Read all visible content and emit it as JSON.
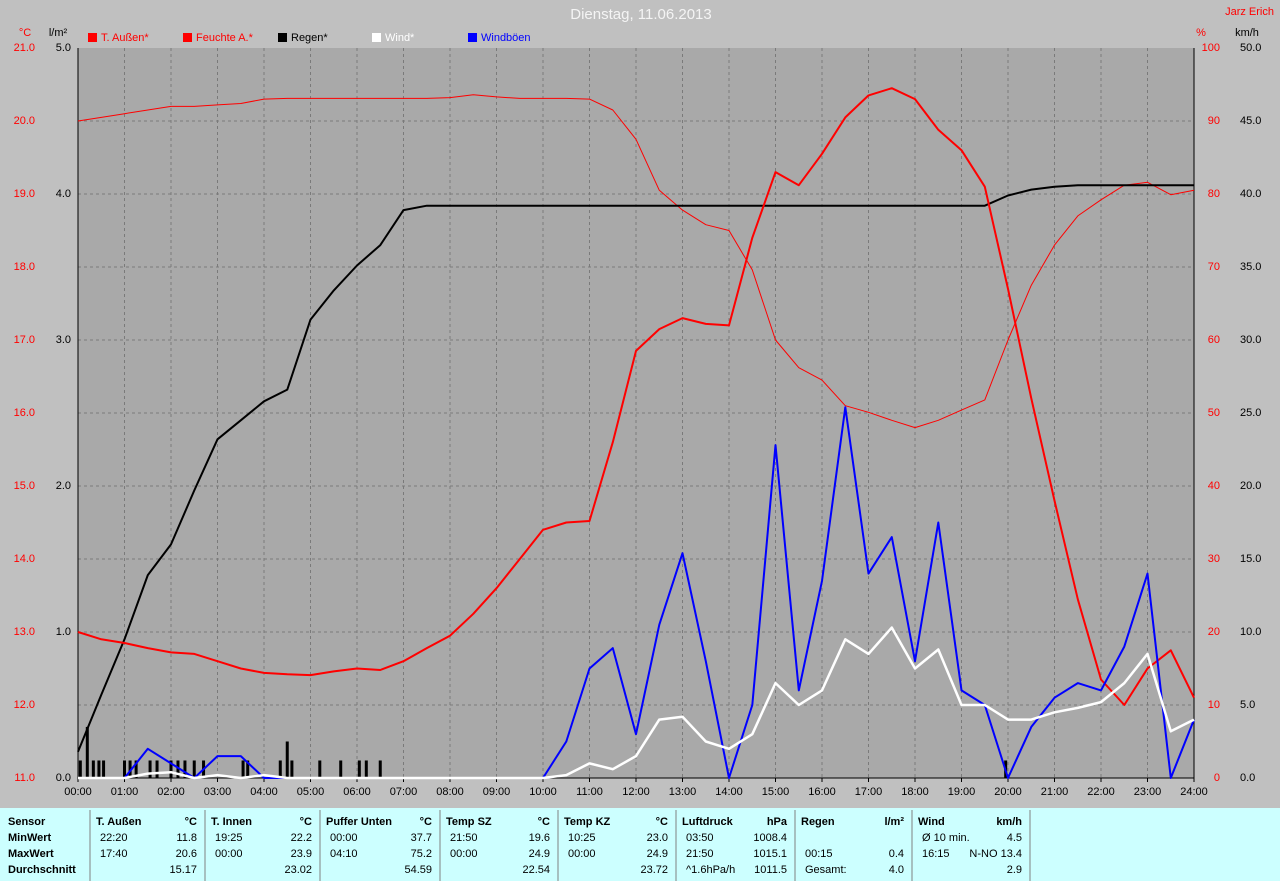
{
  "chart_data": {
    "type": "line",
    "title": "Dienstag, 11.06.2013",
    "author": "Jarz Erich",
    "xlim": [
      0,
      24
    ],
    "xticks": [
      {
        "value": 0,
        "label": "00:00"
      },
      {
        "value": 1,
        "label": "01:00"
      },
      {
        "value": 2,
        "label": "02:00"
      },
      {
        "value": 3,
        "label": "03:00"
      },
      {
        "value": 4,
        "label": "04:00"
      },
      {
        "value": 5,
        "label": "05:00"
      },
      {
        "value": 6,
        "label": "06:00"
      },
      {
        "value": 7,
        "label": "07:00"
      },
      {
        "value": 8,
        "label": "08:00"
      },
      {
        "value": 9,
        "label": "09:00"
      },
      {
        "value": 10,
        "label": "10:00"
      },
      {
        "value": 11,
        "label": "11:00"
      },
      {
        "value": 12,
        "label": "12:00"
      },
      {
        "value": 13,
        "label": "13:00"
      },
      {
        "value": 14,
        "label": "14:00"
      },
      {
        "value": 15,
        "label": "15:00"
      },
      {
        "value": 16,
        "label": "16:00"
      },
      {
        "value": 17,
        "label": "17:00"
      },
      {
        "value": 18,
        "label": "18:00"
      },
      {
        "value": 19,
        "label": "19:00"
      },
      {
        "value": 20,
        "label": "20:00"
      },
      {
        "value": 21,
        "label": "21:00"
      },
      {
        "value": 22,
        "label": "22:00"
      },
      {
        "value": 23,
        "label": "23:00"
      },
      {
        "value": 24,
        "label": "24:00"
      }
    ],
    "grid": true,
    "axes": {
      "temp": {
        "label": "°C",
        "color": "#ff0000",
        "lim": [
          11,
          21
        ],
        "ticks": [
          {
            "value": 11,
            "label": "11.0"
          },
          {
            "value": 12,
            "label": "12.0"
          },
          {
            "value": 13,
            "label": "13.0"
          },
          {
            "value": 14,
            "label": "14.0"
          },
          {
            "value": 15,
            "label": "15.0"
          },
          {
            "value": 16,
            "label": "16.0"
          },
          {
            "value": 17,
            "label": "17.0"
          },
          {
            "value": 18,
            "label": "18.0"
          },
          {
            "value": 19,
            "label": "19.0"
          },
          {
            "value": 20,
            "label": "20.0"
          },
          {
            "value": 21,
            "label": "21.0"
          }
        ]
      },
      "rain": {
        "label": "l/m²",
        "color": "#000000",
        "lim": [
          0,
          5
        ],
        "ticks": [
          {
            "value": 0,
            "label": "0.0"
          },
          {
            "value": 1,
            "label": "1.0"
          },
          {
            "value": 2,
            "label": "2.0"
          },
          {
            "value": 3,
            "label": "3.0"
          },
          {
            "value": 4,
            "label": "4.0"
          },
          {
            "value": 5,
            "label": "5.0"
          }
        ]
      },
      "hum": {
        "label": "%",
        "color": "#ff0000",
        "lim": [
          0,
          100
        ],
        "ticks": [
          0,
          10,
          20,
          30,
          40,
          50,
          60,
          70,
          80,
          90,
          100
        ]
      },
      "wind": {
        "label": "km/h",
        "color": "#000000",
        "lim": [
          0,
          50
        ],
        "ticks": [
          {
            "value": 0,
            "label": "0.0"
          },
          {
            "value": 5,
            "label": "5.0"
          },
          {
            "value": 10,
            "label": "10.0"
          },
          {
            "value": 15,
            "label": "15.0"
          },
          {
            "value": 20,
            "label": "20.0"
          },
          {
            "value": 25,
            "label": "25.0"
          },
          {
            "value": 30,
            "label": "30.0"
          },
          {
            "value": 35,
            "label": "35.0"
          },
          {
            "value": 40,
            "label": "40.0"
          },
          {
            "value": 45,
            "label": "45.0"
          },
          {
            "value": 50,
            "label": "50.0"
          }
        ]
      }
    },
    "x": [
      0,
      0.5,
      1,
      1.5,
      2,
      2.5,
      3,
      3.5,
      4,
      4.5,
      5,
      5.5,
      6,
      6.5,
      7,
      7.5,
      8,
      8.5,
      9,
      9.5,
      10,
      10.5,
      11,
      11.5,
      12,
      12.5,
      13,
      13.5,
      14,
      14.5,
      15,
      15.5,
      16,
      16.5,
      17,
      17.5,
      18,
      18.5,
      19,
      19.5,
      20,
      20.5,
      21,
      21.5,
      22,
      22.5,
      23,
      23.5,
      24
    ],
    "series": [
      {
        "name": "T. Außen*",
        "color": "#ff0000",
        "axis": "temp",
        "width": 2,
        "values": [
          13.0,
          12.9,
          12.85,
          12.78,
          12.72,
          12.7,
          12.6,
          12.5,
          12.44,
          12.42,
          12.41,
          12.46,
          12.5,
          12.48,
          12.6,
          12.78,
          12.95,
          13.25,
          13.6,
          14.0,
          14.4,
          14.5,
          14.52,
          15.6,
          16.85,
          17.15,
          17.3,
          17.22,
          17.2,
          18.4,
          19.3,
          19.12,
          19.55,
          20.05,
          20.35,
          20.45,
          20.3,
          19.88,
          19.6,
          19.1,
          17.7,
          16.2,
          14.8,
          13.45,
          12.35,
          12.0,
          12.5,
          12.75,
          12.1
        ]
      },
      {
        "name": "Feuchte A.*",
        "color": "#ff0000",
        "axis": "hum",
        "width": 1,
        "values": [
          90,
          90.5,
          91,
          91.5,
          92,
          92,
          92.2,
          92.4,
          93,
          93.1,
          93.1,
          93.1,
          93.1,
          93.1,
          93.1,
          93.1,
          93.2,
          93.6,
          93.3,
          93.1,
          93.1,
          93.1,
          93,
          91.5,
          87.5,
          80.5,
          77.8,
          75.8,
          75,
          69.6,
          60,
          56.2,
          54.5,
          51,
          50.1,
          49,
          48,
          49,
          50.4,
          51.8,
          60,
          67.5,
          73,
          77,
          79.2,
          81.2,
          81.6,
          79.9,
          80.5
        ]
      },
      {
        "name": "Regen*",
        "color": "#000000",
        "axis": "rain",
        "width": 2,
        "values": [
          0.18,
          0.57,
          0.95,
          1.39,
          1.6,
          1.97,
          2.32,
          2.45,
          2.58,
          2.66,
          3.14,
          3.34,
          3.51,
          3.65,
          3.89,
          3.92,
          3.92,
          3.92,
          3.92,
          3.92,
          3.92,
          3.92,
          3.92,
          3.92,
          3.92,
          3.92,
          3.92,
          3.92,
          3.92,
          3.92,
          3.92,
          3.92,
          3.92,
          3.92,
          3.92,
          3.92,
          3.92,
          3.92,
          3.92,
          3.92,
          3.99,
          4.03,
          4.05,
          4.06,
          4.06,
          4.06,
          4.06,
          4.06,
          4.06
        ]
      },
      {
        "name": "Wind*",
        "color": "#ffffff",
        "axis": "wind",
        "width": 2.5,
        "values": [
          0,
          0,
          0,
          0.3,
          0.4,
          0,
          0.2,
          0,
          0.2,
          0,
          0,
          0,
          0,
          0,
          0,
          0,
          0,
          0,
          0,
          0,
          0,
          0.2,
          1.0,
          0.6,
          1.5,
          4.0,
          4.2,
          2.5,
          2.0,
          3.0,
          6.5,
          5.0,
          6.0,
          9.5,
          8.5,
          10.3,
          7.5,
          8.8,
          5.0,
          5.0,
          4.0,
          4.0,
          4.5,
          4.8,
          5.2,
          6.5,
          8.5,
          3.2,
          4.0
        ]
      },
      {
        "name": "Windböen",
        "color": "#0000ff",
        "axis": "wind",
        "width": 2,
        "values": [
          0,
          0,
          0,
          2.0,
          1.0,
          0,
          1.5,
          1.5,
          0,
          0,
          0,
          0,
          0,
          0,
          0,
          0,
          0,
          0,
          0,
          0,
          0,
          2.5,
          7.5,
          8.9,
          3,
          10.5,
          15.4,
          8.0,
          0,
          5,
          22.8,
          6,
          13.5,
          25.4,
          14,
          16.5,
          8,
          17.5,
          6,
          5,
          0,
          3.5,
          5.5,
          6.5,
          6,
          9,
          14,
          0,
          4
        ]
      }
    ],
    "rain_bars": {
      "color": "#000000",
      "axis": "rain",
      "x": [
        0.05,
        0.2,
        0.33,
        0.45,
        0.55,
        1.0,
        1.12,
        1.25,
        1.55,
        1.7,
        2.0,
        2.15,
        2.3,
        2.5,
        2.7,
        3.55,
        3.65,
        4.35,
        4.5,
        4.6,
        5.2,
        5.65,
        6.05,
        6.2,
        6.5,
        19.95
      ],
      "values": [
        0.12,
        0.35,
        0.12,
        0.12,
        0.12,
        0.12,
        0.12,
        0.12,
        0.12,
        0.12,
        0.12,
        0.12,
        0.12,
        0.12,
        0.12,
        0.12,
        0.12,
        0.12,
        0.25,
        0.12,
        0.12,
        0.12,
        0.12,
        0.12,
        0.12,
        0.12
      ]
    }
  },
  "table": {
    "headers": [
      "Sensor",
      [
        "T. Außen",
        "°C"
      ],
      [
        "T. Innen",
        "°C"
      ],
      [
        "Puffer Unten",
        "°C"
      ],
      [
        "Temp SZ",
        "°C"
      ],
      [
        "Temp KZ",
        "°C"
      ],
      [
        "Luftdruck",
        "hPa"
      ],
      [
        "Regen",
        "l/m²"
      ],
      [
        "Wind",
        "km/h"
      ]
    ],
    "rows": [
      {
        "label": "MinWert",
        "cells": [
          [
            "22:20",
            "11.8"
          ],
          [
            "19:25",
            "22.2"
          ],
          [
            "00:00",
            "37.7"
          ],
          [
            "21:50",
            "19.6"
          ],
          [
            "10:25",
            "23.0"
          ],
          [
            "03:50",
            "1008.4"
          ],
          [
            null,
            null
          ],
          [
            "Ø 10 min.",
            "4.5"
          ]
        ]
      },
      {
        "label": "MaxWert",
        "cells": [
          [
            "17:40",
            "20.6"
          ],
          [
            "00:00",
            "23.9"
          ],
          [
            "04:10",
            "75.2"
          ],
          [
            "00:00",
            "24.9"
          ],
          [
            "00:00",
            "24.9"
          ],
          [
            "21:50",
            "1015.1"
          ],
          [
            "00:15",
            "0.4"
          ],
          [
            "16:15",
            "N-NO 13.4"
          ]
        ]
      },
      {
        "label": "Durchschnitt",
        "cells": [
          [
            null,
            "15.17"
          ],
          [
            null,
            "23.02"
          ],
          [
            null,
            "54.59"
          ],
          [
            null,
            "22.54"
          ],
          [
            null,
            "23.72"
          ],
          [
            "^1.6hPa/h",
            "1011.5"
          ],
          [
            "Gesamt:",
            "4.0"
          ],
          [
            null,
            "2.9"
          ]
        ]
      }
    ]
  }
}
